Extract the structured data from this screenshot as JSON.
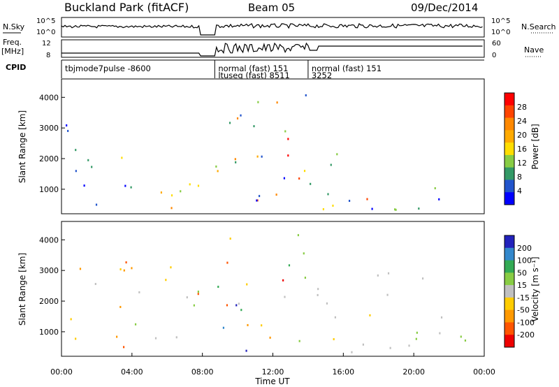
{
  "header": {
    "station": "Buckland Park (fitACF)",
    "beam": "Beam 05",
    "date": "09/Dec/2014"
  },
  "left_labels": {
    "nsky": "N.Sky",
    "freq": "Freq.",
    "freq_unit": "[MHz]",
    "cpid": "CPID"
  },
  "right_labels": {
    "nsearch": "N.Search",
    "nave": "Nave"
  },
  "noise_axis": {
    "top": "10^5",
    "bottom": "10^0"
  },
  "freq_axis": {
    "top": "12",
    "bottom": "8"
  },
  "nave_axis": {
    "top": "60",
    "bottom": "0"
  },
  "cpid_labels": [
    {
      "text": "tbjmode7pulse -8600",
      "start_hour": 0.0
    },
    {
      "text": "normal (fast) 151",
      "start_hour": 8.7
    },
    {
      "text": "ltuseq (fast) 8511",
      "start_hour": 8.7
    },
    {
      "text": "normal (fast) 151",
      "start_hour": 14.0
    },
    {
      "text": "3252",
      "start_hour": 14.0
    }
  ],
  "chart_data": [
    {
      "type": "heatmap",
      "name": "power",
      "ylabel": "Slant Range [km]",
      "y_ticks": [
        "4000",
        "3000",
        "2000",
        "1000"
      ],
      "colorbar": {
        "label": "Power [dB]",
        "ticks": [
          "28",
          "24",
          "20",
          "16",
          "12",
          "8",
          "4"
        ],
        "colors": [
          "#ff0000",
          "#ff4400",
          "#ff8800",
          "#ffaa00",
          "#ffdd00",
          "#88cc44",
          "#339966",
          "#2255cc",
          "#0000ff"
        ]
      }
    },
    {
      "type": "heatmap",
      "name": "velocity",
      "ylabel": "Slant Range [km]",
      "y_ticks": [
        "4000",
        "3000",
        "2000",
        "1000"
      ],
      "colorbar": {
        "label": "Velocity [m s⁻¹]",
        "ticks": [
          "200",
          "100",
          "50",
          "15",
          "-15",
          "-50",
          "-100",
          "-200"
        ],
        "colors": [
          "#2222bb",
          "#3388cc",
          "#33aa55",
          "#88cc44",
          "#c0c0c0",
          "#ffcc00",
          "#ff9900",
          "#ff5500",
          "#ee0000"
        ]
      }
    }
  ],
  "x_axis": {
    "label": "Time UT",
    "ticks": [
      "00:00",
      "04:00",
      "08:00",
      "12:00",
      "16:00",
      "20:00",
      "00:00"
    ]
  }
}
